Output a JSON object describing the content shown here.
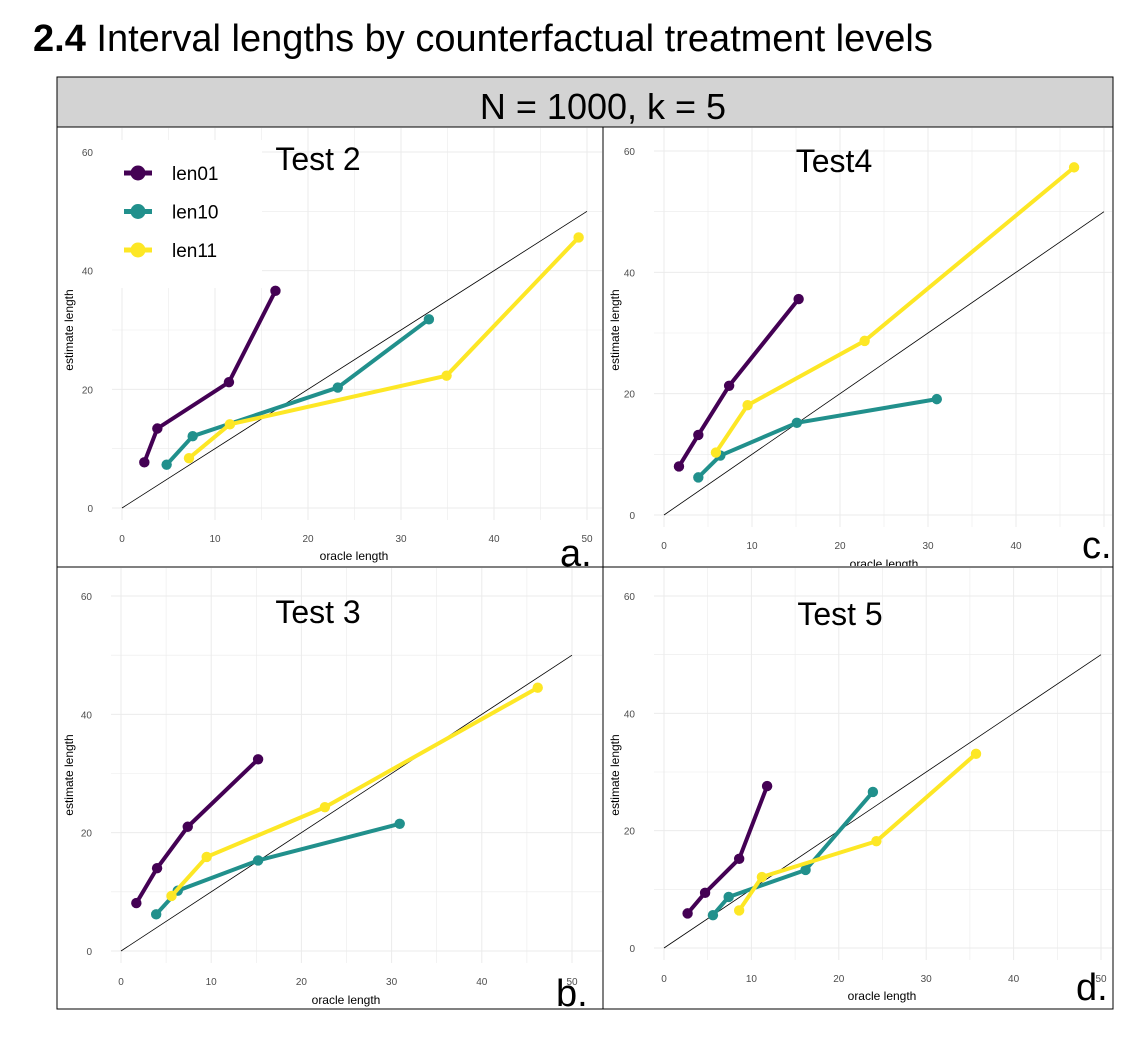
{
  "figure": {
    "number": "2.4",
    "title": "Interval lengths by counterfactual treatment levels",
    "strip_label": "N = 1000, k = 5"
  },
  "colors": {
    "len01": "#440154",
    "len10": "#21908C",
    "len11": "#FDE725",
    "grid": "#ebebeb",
    "diagonal": "#000000",
    "strip_bg": "#d3d3d3"
  },
  "legend": {
    "placement": "top-left of panel a",
    "entries": [
      "len01",
      "len10",
      "len11"
    ]
  },
  "chart_data": [
    {
      "type": "line",
      "panel": "a.",
      "title": "Test 2",
      "xlabel": "oracle length",
      "ylabel": "estimate length",
      "xlim": [
        0,
        50
      ],
      "ylim": [
        0,
        60
      ],
      "xticks": [
        "0",
        "10",
        "20",
        "30",
        "40",
        "50"
      ],
      "yticks": [
        "0",
        "20",
        "40",
        "60"
      ],
      "grid": true,
      "reference_line": "y = x",
      "series": [
        {
          "name": "len01",
          "x": [
            2.4,
            3.8,
            11.5,
            16.5
          ],
          "y": [
            7.7,
            13.4,
            21.2,
            36.6
          ]
        },
        {
          "name": "len10",
          "x": [
            4.8,
            7.6,
            23.2,
            33.0
          ],
          "y": [
            7.3,
            12.1,
            20.3,
            31.8
          ]
        },
        {
          "name": "len11",
          "x": [
            7.2,
            11.6,
            34.9,
            49.1
          ],
          "y": [
            8.4,
            14.1,
            22.3,
            45.6
          ]
        }
      ]
    },
    {
      "type": "line",
      "panel": "c.",
      "title": "Test4",
      "xlabel": "oracle length",
      "ylabel": "estimate length",
      "xlim": [
        0,
        50
      ],
      "ylim": [
        0,
        60
      ],
      "xticks": [
        "0",
        "10",
        "20",
        "30",
        "40"
      ],
      "yticks": [
        "0",
        "20",
        "40",
        "60"
      ],
      "grid": true,
      "reference_line": "y = x",
      "series": [
        {
          "name": "len01",
          "x": [
            1.7,
            3.9,
            7.4,
            15.3
          ],
          "y": [
            8.0,
            13.2,
            21.3,
            35.6
          ]
        },
        {
          "name": "len10",
          "x": [
            3.9,
            6.4,
            15.1,
            31.0
          ],
          "y": [
            6.2,
            9.8,
            15.2,
            19.1
          ]
        },
        {
          "name": "len11",
          "x": [
            5.9,
            9.5,
            22.8,
            46.6
          ],
          "y": [
            10.3,
            18.1,
            28.7,
            57.3
          ]
        }
      ]
    },
    {
      "type": "line",
      "panel": "b.",
      "title": "Test 3",
      "xlabel": "oracle length",
      "ylabel": "estimate length",
      "xlim": [
        0,
        50
      ],
      "ylim": [
        0,
        60
      ],
      "xticks": [
        "0",
        "10",
        "20",
        "30",
        "40",
        "50"
      ],
      "yticks": [
        "0",
        "20",
        "40",
        "60"
      ],
      "grid": true,
      "reference_line": "y = x",
      "series": [
        {
          "name": "len01",
          "x": [
            1.7,
            4.0,
            7.4,
            15.2
          ],
          "y": [
            8.1,
            14.0,
            21.0,
            32.4
          ]
        },
        {
          "name": "len10",
          "x": [
            3.9,
            6.3,
            15.2,
            30.9
          ],
          "y": [
            6.2,
            10.2,
            15.3,
            21.5
          ]
        },
        {
          "name": "len11",
          "x": [
            5.6,
            9.5,
            22.6,
            46.2
          ],
          "y": [
            9.3,
            15.9,
            24.3,
            44.5
          ]
        }
      ]
    },
    {
      "type": "line",
      "panel": "d.",
      "title": "Test 5",
      "xlabel": "oracle length",
      "ylabel": "estimate length",
      "xlim": [
        0,
        50
      ],
      "ylim": [
        0,
        60
      ],
      "xticks": [
        "0",
        "10",
        "20",
        "30",
        "40",
        "50"
      ],
      "yticks": [
        "0",
        "20",
        "40",
        "60"
      ],
      "grid": true,
      "reference_line": "y = x",
      "series": [
        {
          "name": "len01",
          "x": [
            2.7,
            4.7,
            8.6,
            11.8
          ],
          "y": [
            5.9,
            9.4,
            15.2,
            27.6
          ]
        },
        {
          "name": "len10",
          "x": [
            5.6,
            7.4,
            16.2,
            23.9
          ],
          "y": [
            5.6,
            8.7,
            13.3,
            26.6
          ]
        },
        {
          "name": "len11",
          "x": [
            8.6,
            11.2,
            24.3,
            35.7
          ],
          "y": [
            6.4,
            12.1,
            18.2,
            33.1
          ]
        }
      ]
    }
  ]
}
